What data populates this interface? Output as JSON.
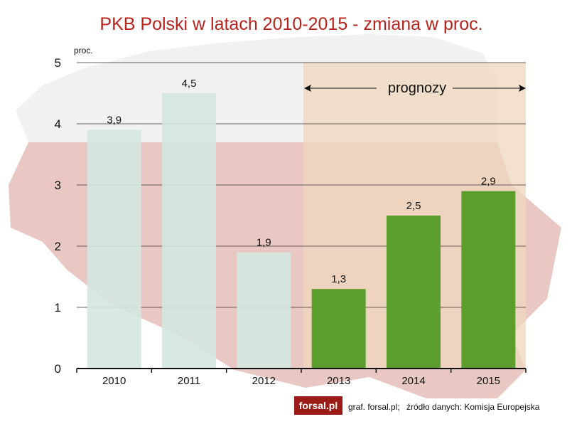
{
  "chart_data": {
    "type": "bar",
    "title": "PKB Polski w latach 2010-2015 - zmiana w proc.",
    "ylabel": "proc.",
    "xlabel": "",
    "ylim": [
      0,
      5
    ],
    "yticks": [
      "0",
      "1",
      "2",
      "3",
      "4",
      "5"
    ],
    "grid": true,
    "categories": [
      "2010",
      "2011",
      "2012",
      "2013",
      "2014",
      "2015"
    ],
    "values": [
      3.9,
      4.5,
      1.9,
      1.3,
      2.5,
      2.9
    ],
    "value_labels": [
      "3,9",
      "4,5",
      "1,9",
      "1,3",
      "2,5",
      "2,9"
    ],
    "forecast_categories": [
      "2013",
      "2014",
      "2015"
    ],
    "annotations": [
      {
        "text": "prognozy",
        "span": [
          "2013",
          "2015"
        ]
      }
    ],
    "colors": {
      "actual_bar": "#d4e7e0",
      "forecast_bar": "#5c9e2e",
      "forecast_band": "#efd7bd",
      "title": "#b5231c",
      "map_red": "#e7c5c1",
      "map_white": "#f3f3f3"
    }
  },
  "footer": {
    "logo": "forsal.pl",
    "credit": "graf. forsal.pl;",
    "source": "źródło danych: Komisja Europejska"
  }
}
